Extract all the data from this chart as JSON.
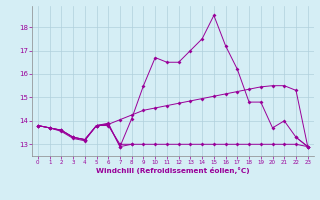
{
  "x": [
    0,
    1,
    2,
    3,
    4,
    5,
    6,
    7,
    8,
    9,
    10,
    11,
    12,
    13,
    14,
    15,
    16,
    17,
    18,
    19,
    20,
    21,
    22,
    23
  ],
  "line_spike": [
    13.8,
    13.7,
    13.6,
    13.3,
    13.2,
    13.8,
    13.9,
    12.9,
    14.1,
    15.5,
    16.7,
    16.5,
    16.5,
    17.0,
    17.5,
    18.5,
    17.2,
    16.2,
    14.8,
    14.8,
    13.7,
    14.0,
    13.3,
    12.9
  ],
  "line_rise": [
    13.8,
    13.7,
    13.6,
    13.3,
    13.2,
    13.8,
    13.85,
    14.05,
    14.25,
    14.45,
    14.55,
    14.65,
    14.75,
    14.85,
    14.95,
    15.05,
    15.15,
    15.25,
    15.35,
    15.45,
    15.5,
    15.5,
    15.3,
    12.9
  ],
  "line_flat": [
    13.8,
    13.7,
    13.6,
    13.3,
    13.2,
    13.8,
    13.8,
    13.0,
    13.0,
    13.0,
    13.0,
    13.0,
    13.0,
    13.0,
    13.0,
    13.0,
    13.0,
    13.0,
    13.0,
    13.0,
    13.0,
    13.0,
    13.0,
    12.9
  ],
  "line_zigzag": [
    13.8,
    13.7,
    13.55,
    13.25,
    13.15,
    13.8,
    13.85,
    12.9,
    13.0,
    null,
    null,
    null,
    null,
    null,
    null,
    null,
    null,
    null,
    null,
    null,
    null,
    null,
    13.3,
    12.9
  ],
  "color": "#990099",
  "bg_color": "#d5eef5",
  "xlabel": "Windchill (Refroidissement éolien,°C)",
  "ylim": [
    12.5,
    18.9
  ],
  "xlim": [
    -0.5,
    23.5
  ],
  "yticks": [
    13,
    14,
    15,
    16,
    17,
    18
  ],
  "xticks": [
    0,
    1,
    2,
    3,
    4,
    5,
    6,
    7,
    8,
    9,
    10,
    11,
    12,
    13,
    14,
    15,
    16,
    17,
    18,
    19,
    20,
    21,
    22,
    23
  ]
}
